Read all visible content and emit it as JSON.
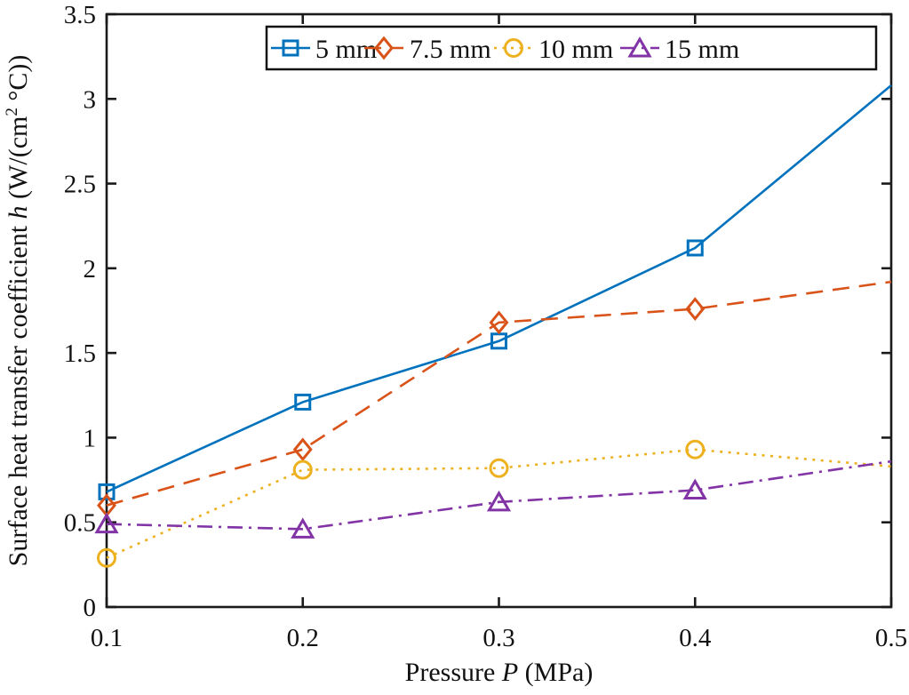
{
  "figure": {
    "background": "#ffffff",
    "axis_color": "#1a1a1a",
    "text_color": "#111111",
    "legend_border_color": "#111111"
  },
  "labels": {
    "xlabel": {
      "prefix": "Pressure ",
      "var": "P",
      "suffix": " (MPa)"
    },
    "ylabel": {
      "prefix": "Surface heat transfer coefficient ",
      "var": "h",
      "unit_prefix": " (W/(cm",
      "sup": "2",
      "unit_suffix": " °C))"
    }
  },
  "chart_data": {
    "type": "line",
    "title": "",
    "xlabel": "Pressure P (MPa)",
    "ylabel": "Surface heat transfer coefficient h (W/(cm² °C))",
    "x": [
      0.1,
      0.2,
      0.3,
      0.4,
      0.5
    ],
    "xlim": [
      0.1,
      0.5
    ],
    "ylim": [
      0,
      3.5
    ],
    "xticks": [
      0.1,
      0.2,
      0.3,
      0.4,
      0.5
    ],
    "yticks": [
      0,
      0.5,
      1,
      1.5,
      2,
      2.5,
      3,
      3.5
    ],
    "xtick_labels": [
      "0.1",
      "0.2",
      "0.3",
      "0.4",
      "0.5"
    ],
    "ytick_labels": [
      "0",
      "0.5",
      "1",
      "1.5",
      "2",
      "2.5",
      "3",
      "3.5"
    ],
    "grid": false,
    "legend_position": "top-inside-horizontal",
    "legend_border": true,
    "markers_on_last_point": false,
    "series": [
      {
        "name": "5 mm",
        "color": "#0072BD",
        "line_style": "solid",
        "marker": "square",
        "values": [
          0.68,
          1.21,
          1.57,
          2.12,
          3.08
        ]
      },
      {
        "name": "7.5 mm",
        "color": "#D95319",
        "line_style": "dashed",
        "marker": "diamond",
        "values": [
          0.6,
          0.93,
          1.68,
          1.76,
          1.92
        ]
      },
      {
        "name": "10 mm",
        "color": "#EDB120",
        "line_style": "dotted",
        "marker": "circle",
        "values": [
          0.29,
          0.81,
          0.82,
          0.93,
          0.83
        ]
      },
      {
        "name": "15 mm",
        "color": "#8233A6",
        "line_style": "dashdot",
        "marker": "triangle",
        "values": [
          0.49,
          0.46,
          0.62,
          0.69,
          0.86
        ]
      }
    ]
  }
}
